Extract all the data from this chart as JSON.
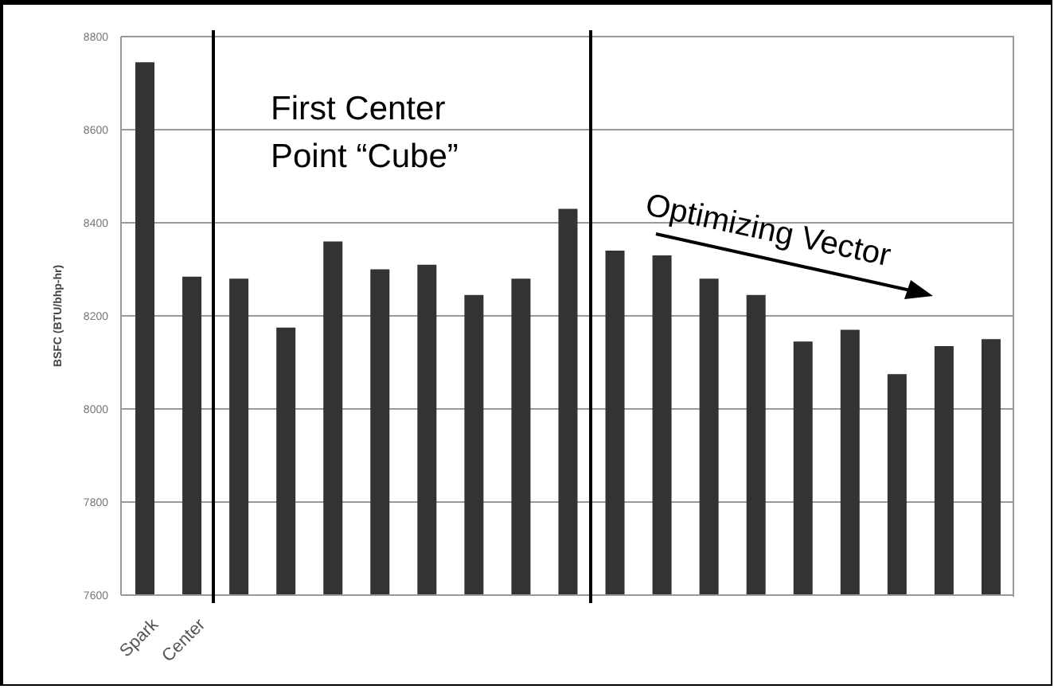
{
  "chart_data": {
    "type": "bar",
    "ylabel": "BSFC (BTU/bhp-hr)",
    "categories": [
      "Spark",
      "Center",
      null,
      null,
      null,
      null,
      null,
      null,
      null,
      null,
      null,
      null,
      null,
      null,
      null,
      null,
      null,
      null,
      null
    ],
    "values": [
      8745,
      8284,
      8280,
      8175,
      8360,
      8300,
      8310,
      8245,
      8280,
      8430,
      8340,
      8330,
      8280,
      8245,
      8145,
      8170,
      8075,
      8135,
      8150
    ],
    "color": "#333333",
    "ylim": [
      7600,
      8800
    ],
    "yticks": [
      7600,
      7800,
      8000,
      8200,
      8400,
      8600,
      8800
    ],
    "grid": "y",
    "annotations": [
      "First Center Point “Cube”",
      "Optimizing Vector"
    ]
  }
}
